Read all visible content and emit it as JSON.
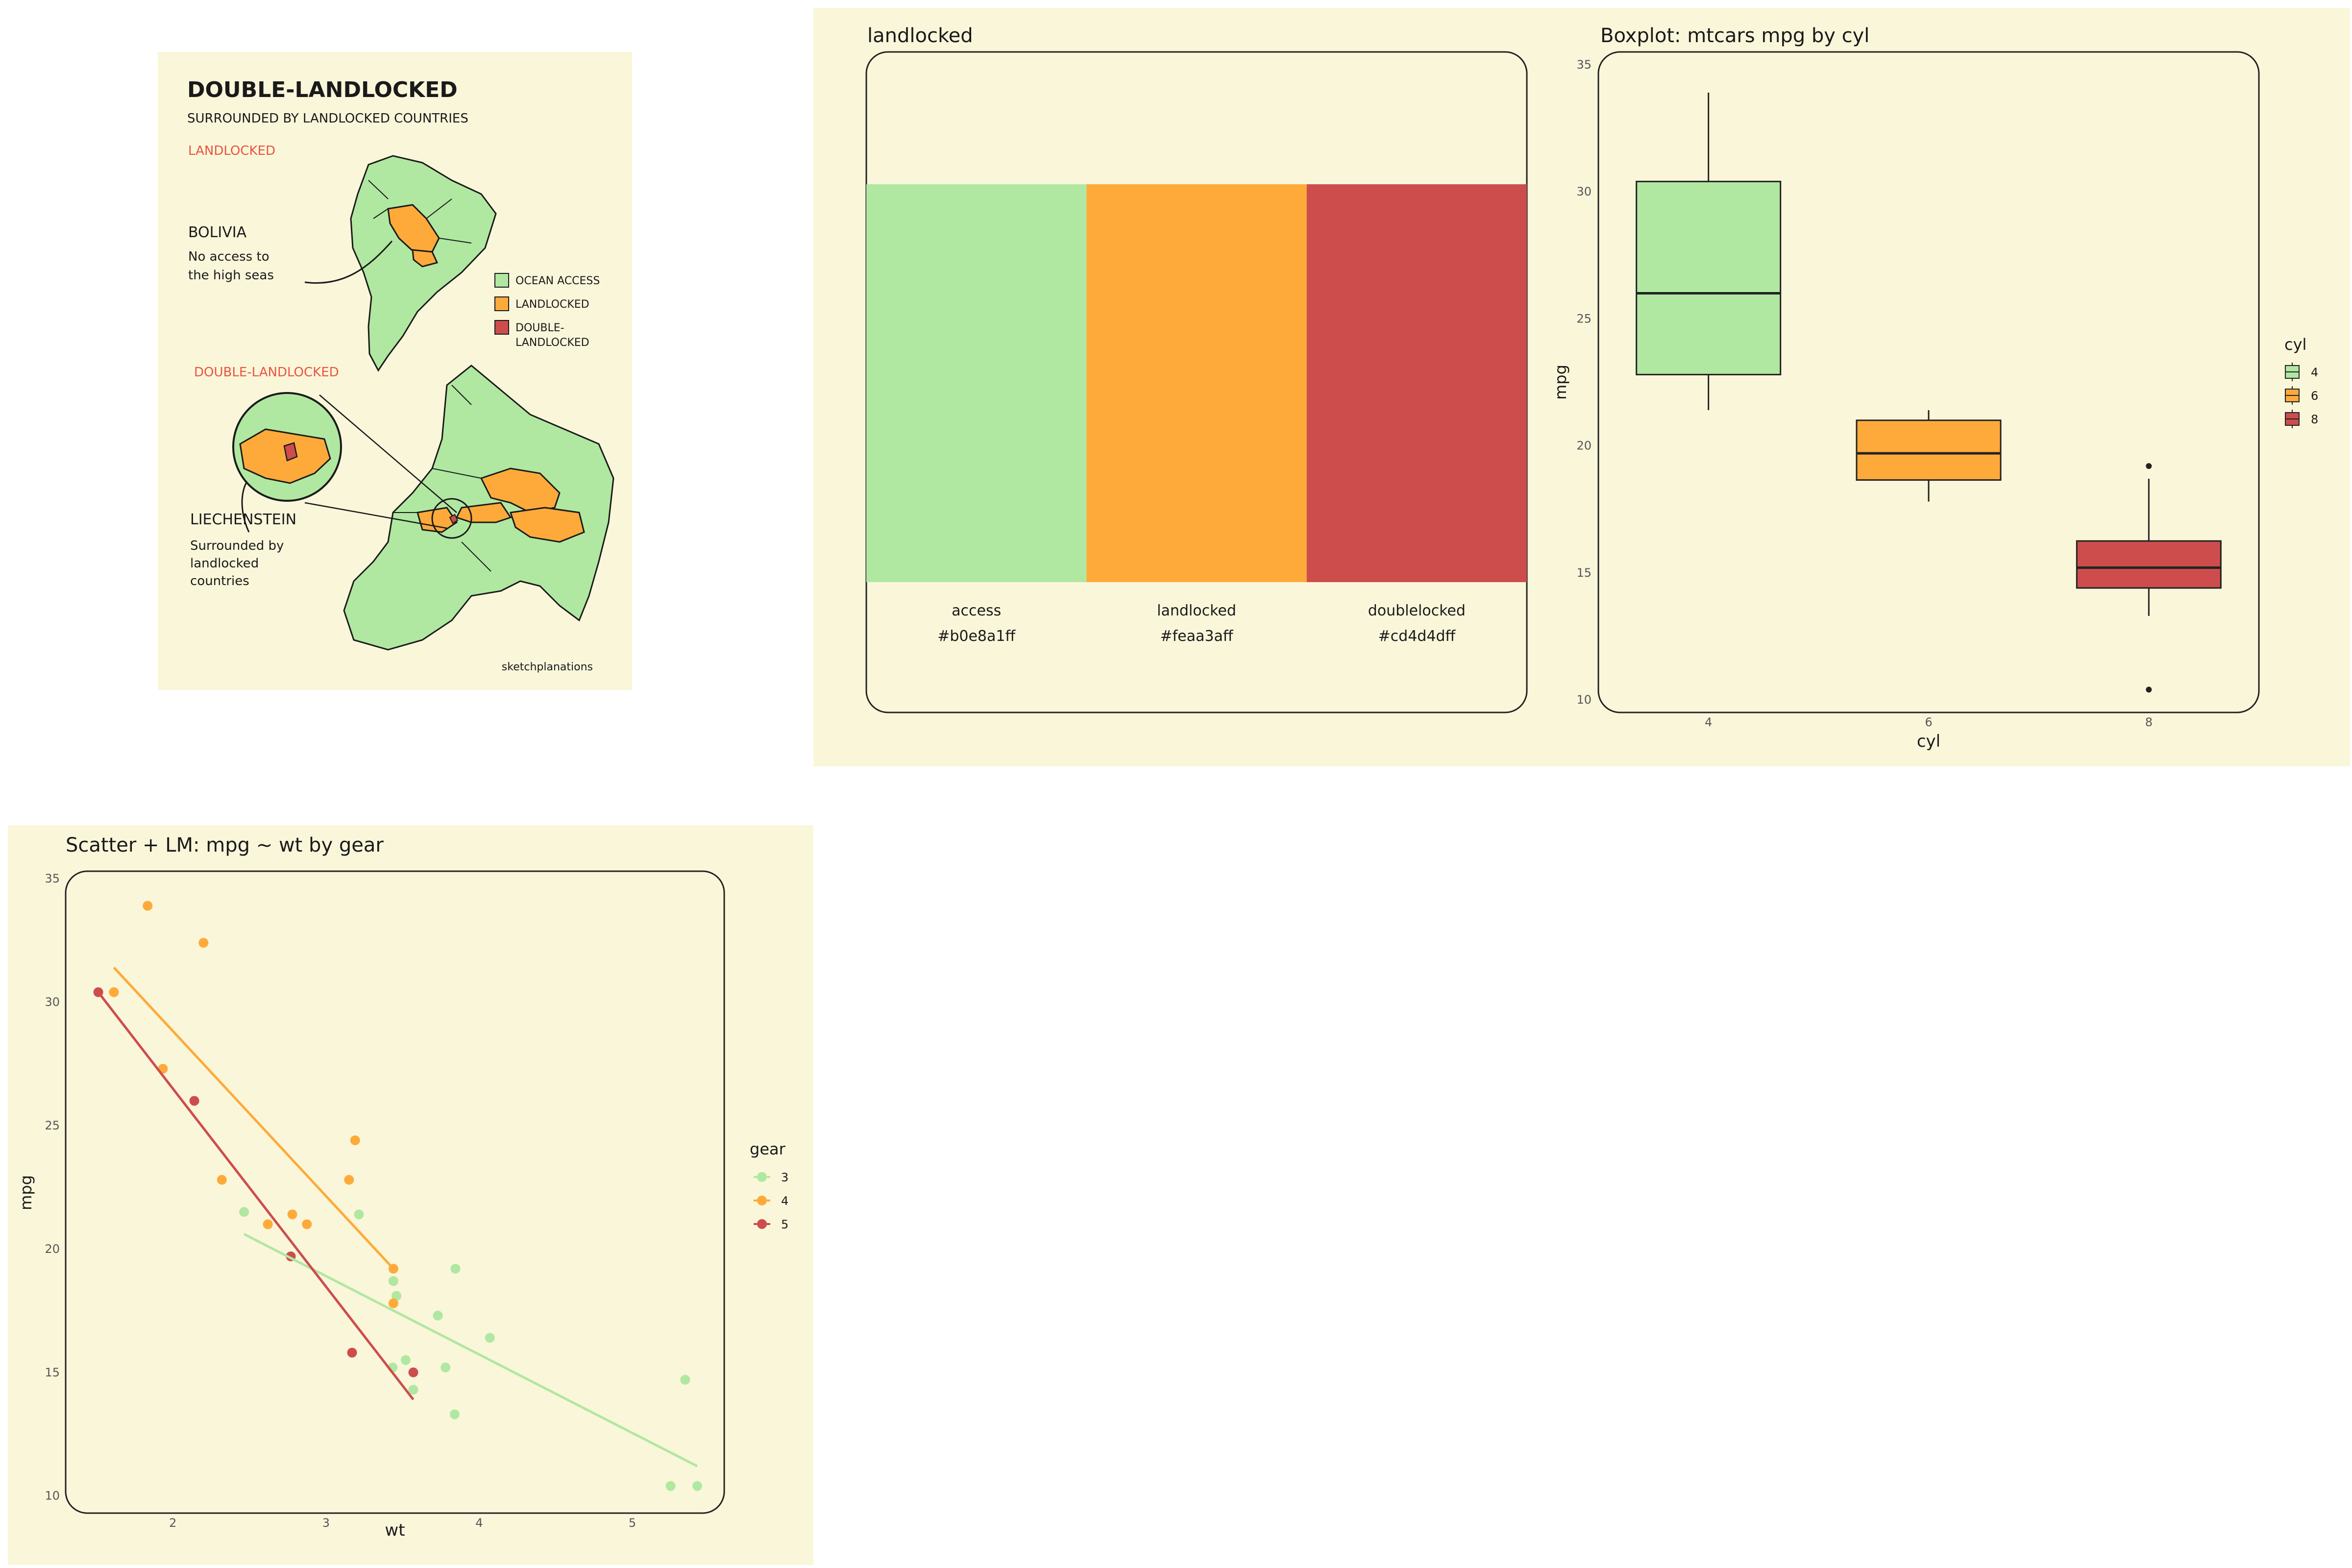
{
  "colors": {
    "background": "#faf6da",
    "access": "#b0e8a1",
    "landlocked": "#feaa3a",
    "doublelocked": "#cd4d4d",
    "frame": "#222222",
    "ink": "#1a1a1a",
    "annotation": "#e8553e"
  },
  "infographic": {
    "title": "DOUBLE-LANDLOCKED",
    "subtitle": "SURROUNDED BY LANDLOCKED COUNTRIES",
    "section_landlocked": "LANDLOCKED",
    "section_double": "DOUBLE-LANDLOCKED",
    "bolivia_name": "BOLIVIA",
    "bolivia_note_1": "No access to",
    "bolivia_note_2": "the high seas",
    "liech_name": "LIECHENSTEIN",
    "liech_note_1": "Surrounded by",
    "liech_note_2": "landlocked",
    "liech_note_3": "countries",
    "legend": [
      {
        "label": "OCEAN ACCESS",
        "color": "#b0e8a1"
      },
      {
        "label": "LANDLOCKED",
        "color": "#feaa3a"
      },
      {
        "label": "DOUBLE-",
        "label2": "LANDLOCKED",
        "color": "#cd4d4d"
      }
    ],
    "credit": "sketchplanations"
  },
  "chart_data": [
    {
      "type": "table",
      "title": "landlocked",
      "swatches": [
        {
          "name": "access",
          "hex": "#b0e8a1ff",
          "color": "#b0e8a1"
        },
        {
          "name": "landlocked",
          "hex": "#feaa3aff",
          "color": "#feaa3a"
        },
        {
          "name": "doublelocked",
          "hex": "#cd4d4dff",
          "color": "#cd4d4d"
        }
      ]
    },
    {
      "type": "box",
      "title": "Boxplot: mtcars mpg by cyl",
      "xlabel": "cyl",
      "ylabel": "mpg",
      "ylim": [
        9.5,
        35.5
      ],
      "yticks": [
        10,
        15,
        20,
        25,
        30,
        35
      ],
      "legend_title": "cyl",
      "legend_placement": "right",
      "groups": [
        {
          "name": "4",
          "min": 21.4,
          "q1": 22.8,
          "median": 26.0,
          "q3": 30.4,
          "max": 33.9,
          "outliers": [],
          "color": "#b0e8a1"
        },
        {
          "name": "6",
          "min": 17.8,
          "q1": 18.65,
          "median": 19.7,
          "q3": 21.0,
          "max": 21.4,
          "outliers": [],
          "color": "#feaa3a"
        },
        {
          "name": "8",
          "min": 13.3,
          "q1": 14.4,
          "median": 15.2,
          "q3": 16.25,
          "max": 18.7,
          "outliers": [
            10.4,
            19.2
          ],
          "color": "#cd4d4d"
        }
      ]
    },
    {
      "type": "scatter",
      "title": "Scatter + LM: mpg ~ wt by gear",
      "xlabel": "wt",
      "ylabel": "mpg",
      "xlim": [
        1.3,
        5.6
      ],
      "ylim": [
        9.3,
        35.3
      ],
      "xticks": [
        2,
        3,
        4,
        5
      ],
      "yticks": [
        10,
        15,
        20,
        25,
        30,
        35
      ],
      "legend_title": "gear",
      "legend_placement": "right",
      "series": [
        {
          "name": "3",
          "color": "#b0e8a1",
          "points": [
            [
              2.465,
              21.5
            ],
            [
              3.215,
              21.4
            ],
            [
              3.44,
              18.7
            ],
            [
              3.46,
              18.1
            ],
            [
              3.57,
              14.3
            ],
            [
              4.07,
              16.4
            ],
            [
              3.73,
              17.3
            ],
            [
              3.78,
              15.2
            ],
            [
              5.25,
              10.4
            ],
            [
              5.424,
              10.4
            ],
            [
              5.345,
              14.7
            ],
            [
              3.52,
              15.5
            ],
            [
              3.435,
              15.2
            ],
            [
              3.84,
              13.3
            ],
            [
              3.845,
              19.2
            ]
          ],
          "fit": [
            [
              2.465,
              20.6
            ],
            [
              5.424,
              11.2
            ]
          ]
        },
        {
          "name": "4",
          "color": "#feaa3a",
          "points": [
            [
              2.62,
              21.0
            ],
            [
              2.875,
              21.0
            ],
            [
              2.32,
              22.8
            ],
            [
              3.19,
              24.4
            ],
            [
              3.15,
              22.8
            ],
            [
              3.44,
              19.2
            ],
            [
              3.44,
              17.8
            ],
            [
              2.2,
              32.4
            ],
            [
              1.615,
              30.4
            ],
            [
              1.835,
              33.9
            ],
            [
              1.935,
              27.3
            ],
            [
              2.78,
              21.4
            ]
          ],
          "fit": [
            [
              1.615,
              31.4
            ],
            [
              3.44,
              19.2
            ]
          ]
        },
        {
          "name": "5",
          "color": "#cd4d4d",
          "points": [
            [
              2.14,
              26.0
            ],
            [
              1.513,
              30.4
            ],
            [
              3.17,
              15.8
            ],
            [
              2.77,
              19.7
            ],
            [
              3.57,
              15.0
            ]
          ],
          "fit": [
            [
              1.513,
              30.4
            ],
            [
              3.57,
              13.9
            ]
          ]
        }
      ]
    }
  ]
}
